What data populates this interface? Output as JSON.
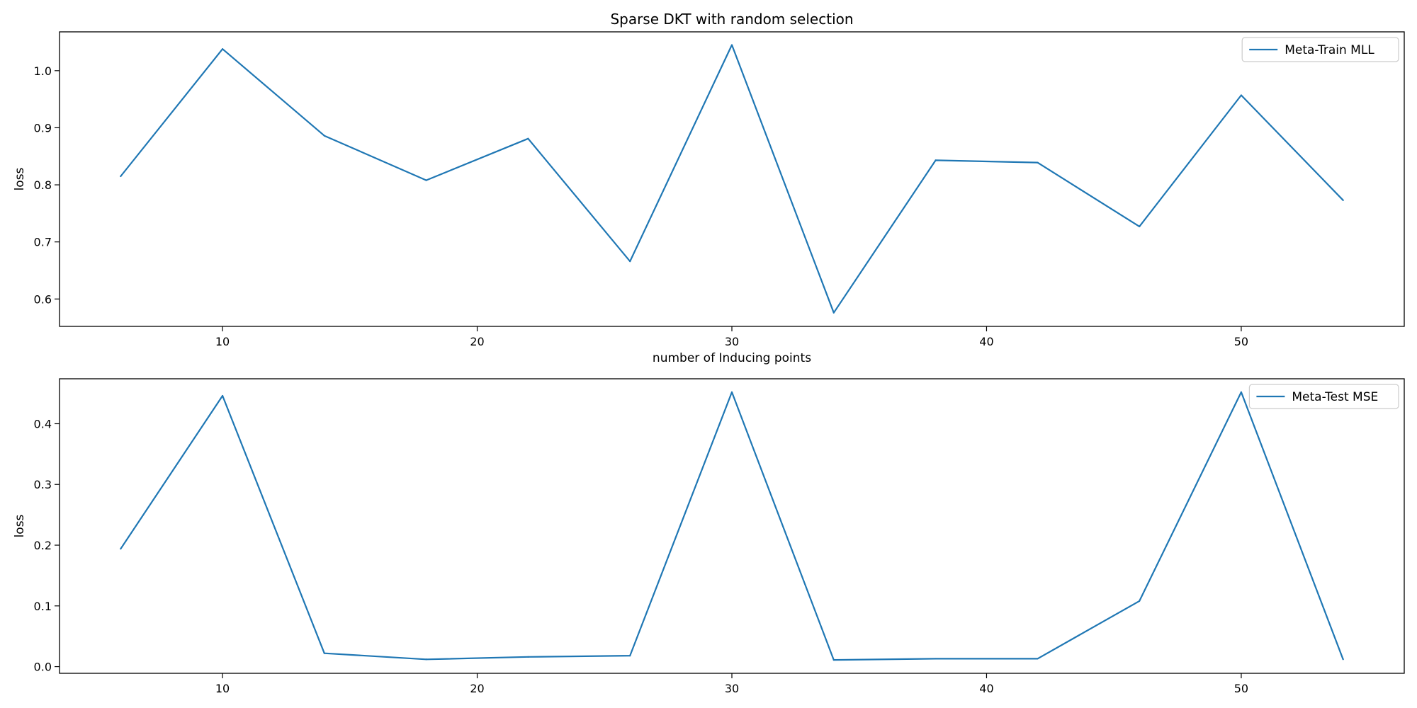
{
  "figure": {
    "title": "Sparse DKT with random selection"
  },
  "chart_data": [
    {
      "type": "line",
      "title": "Sparse DKT with random selection",
      "xlabel": "number of Inducing points",
      "ylabel": "loss",
      "xlim": [
        3.6,
        56.4
      ],
      "ylim": [
        0.552,
        1.068
      ],
      "xticks": [
        10,
        20,
        30,
        40,
        50
      ],
      "yticks": [
        0.6,
        0.7,
        0.8,
        0.9,
        1.0
      ],
      "ytick_labels": [
        "0.6",
        "0.7",
        "0.8",
        "0.9",
        "1.0"
      ],
      "grid": false,
      "legend_position": "top-right",
      "color": "#1f77b4",
      "series": [
        {
          "name": "Meta-Train MLL",
          "x": [
            6,
            10,
            14,
            18,
            22,
            26,
            30,
            34,
            38,
            42,
            46,
            50,
            54
          ],
          "values": [
            0.815,
            1.038,
            0.886,
            0.808,
            0.881,
            0.666,
            1.045,
            0.576,
            0.843,
            0.839,
            0.727,
            0.957,
            0.773
          ]
        }
      ]
    },
    {
      "type": "line",
      "title": "",
      "xlabel": "",
      "ylabel": "loss",
      "xlim": [
        3.6,
        56.4
      ],
      "ylim": [
        -0.011,
        0.474
      ],
      "xticks": [
        10,
        20,
        30,
        40,
        50
      ],
      "yticks": [
        0.0,
        0.1,
        0.2,
        0.3,
        0.4
      ],
      "ytick_labels": [
        "0.0",
        "0.1",
        "0.2",
        "0.3",
        "0.4"
      ],
      "grid": false,
      "legend_position": "top-right",
      "color": "#1f77b4",
      "series": [
        {
          "name": "Meta-Test MSE",
          "x": [
            6,
            10,
            14,
            18,
            22,
            26,
            30,
            34,
            38,
            42,
            46,
            50,
            54
          ],
          "values": [
            0.194,
            0.446,
            0.022,
            0.012,
            0.016,
            0.018,
            0.452,
            0.011,
            0.013,
            0.013,
            0.108,
            0.452,
            0.012
          ]
        }
      ]
    }
  ]
}
